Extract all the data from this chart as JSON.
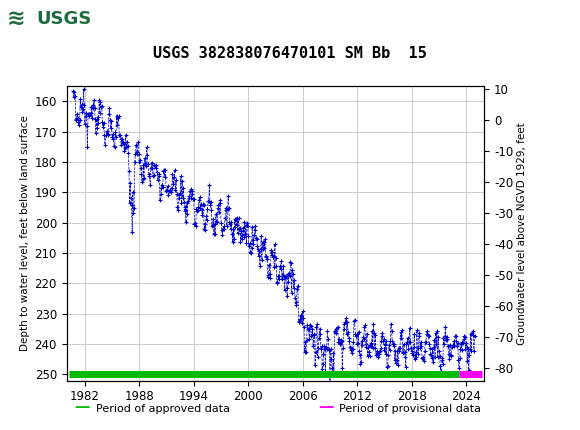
{
  "title": "USGS 382838076470101 SM Bb  15",
  "ylabel_left": "Depth to water level, feet below land surface",
  "ylabel_right": "Groundwater level above NGVD 1929, feet",
  "xlim": [
    1980.0,
    2026.0
  ],
  "ylim_left": [
    252,
    155
  ],
  "ylim_right": [
    -84.0,
    11.0
  ],
  "xticks": [
    1982,
    1988,
    1994,
    2000,
    2006,
    2012,
    2018,
    2024
  ],
  "yticks_left": [
    160,
    170,
    180,
    190,
    200,
    210,
    220,
    230,
    240,
    250
  ],
  "yticks_right": [
    10,
    0,
    -10,
    -20,
    -30,
    -40,
    -50,
    -60,
    -70,
    -80
  ],
  "header_bg": "#1d6b3e",
  "plot_bg": "#ffffff",
  "grid_color": "#cccccc",
  "data_color": "#0000cc",
  "approved_color": "#00bb00",
  "provisional_color": "#ff00ff",
  "legend_approved": "Period of approved data",
  "legend_provisional": "Period of provisional data",
  "approved_xstart": 1980.3,
  "approved_xend": 2023.2,
  "provisional_xstart": 2023.2,
  "provisional_xend": 2025.8
}
